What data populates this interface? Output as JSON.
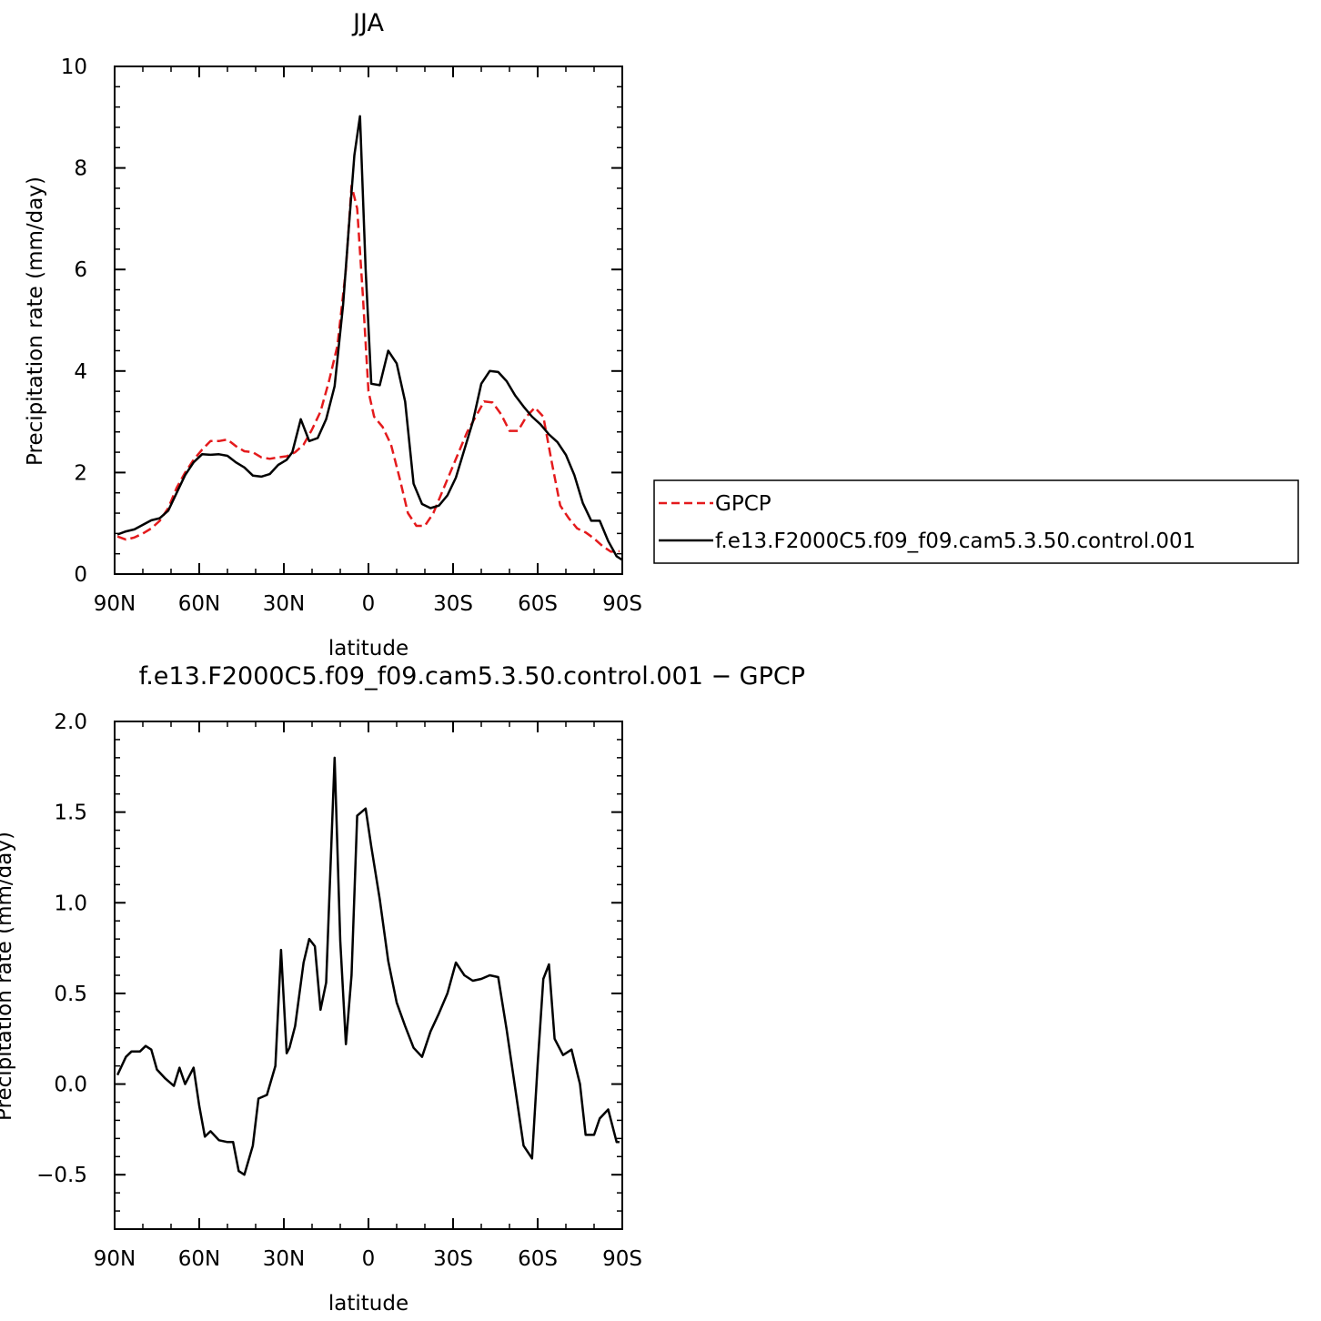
{
  "chart_data": [
    {
      "type": "line",
      "title": "JJA",
      "xlabel": "latitude",
      "ylabel": "Precipitation rate (mm/day)",
      "xlim": [
        -90,
        90
      ],
      "ylim": [
        0,
        10
      ],
      "x_ticks": [
        -90,
        -60,
        -30,
        0,
        30,
        60,
        90
      ],
      "x_tick_labels": [
        "90N",
        "60N",
        "30N",
        "0",
        "30S",
        "60S",
        "90S"
      ],
      "y_ticks": [
        0,
        2,
        4,
        6,
        8,
        10
      ],
      "y_tick_labels": [
        "0",
        "2",
        "4",
        "6",
        "8",
        "10"
      ],
      "grid": false,
      "legend_position": "right",
      "series": [
        {
          "name": "GPCP",
          "color": "#e41a1c",
          "dash": true,
          "x": [
            -89,
            -86,
            -83,
            -80,
            -77,
            -74,
            -71,
            -68,
            -65,
            -62,
            -59,
            -56,
            -53,
            -50,
            -47,
            -44,
            -41,
            -38,
            -35,
            -32,
            -29,
            -26,
            -23,
            -20,
            -17,
            -14,
            -11,
            -8,
            -6,
            -4,
            -2,
            0,
            2,
            5,
            8,
            11,
            14,
            17,
            20,
            23,
            26,
            29,
            32,
            35,
            38,
            41,
            44,
            47,
            50,
            53,
            56,
            59,
            62,
            65,
            68,
            71,
            74,
            77,
            80,
            83,
            86,
            89
          ],
          "y": [
            0.74,
            0.68,
            0.72,
            0.8,
            0.9,
            1.05,
            1.3,
            1.7,
            2.0,
            2.25,
            2.45,
            2.62,
            2.62,
            2.65,
            2.52,
            2.42,
            2.4,
            2.3,
            2.27,
            2.3,
            2.32,
            2.4,
            2.55,
            2.85,
            3.2,
            3.8,
            4.5,
            6.0,
            7.65,
            7.2,
            5.5,
            3.6,
            3.1,
            2.9,
            2.55,
            1.9,
            1.2,
            0.95,
            0.95,
            1.2,
            1.6,
            2.0,
            2.4,
            2.8,
            3.1,
            3.4,
            3.38,
            3.15,
            2.82,
            2.82,
            3.1,
            3.28,
            3.1,
            2.2,
            1.35,
            1.1,
            0.9,
            0.82,
            0.7,
            0.55,
            0.44,
            0.45
          ]
        },
        {
          "name": "f.e13.F2000C5.f09_f09.cam5.3.50.control.001",
          "color": "#000000",
          "dash": false,
          "x": [
            -89,
            -86,
            -83,
            -80,
            -77,
            -74,
            -71,
            -68,
            -65,
            -62,
            -59,
            -56,
            -53,
            -50,
            -47,
            -44,
            -41,
            -38,
            -35,
            -32,
            -29,
            -27,
            -24,
            -21,
            -18,
            -15,
            -12,
            -9,
            -7,
            -5,
            -3,
            -1,
            1,
            4,
            7,
            10,
            13,
            16,
            19,
            22,
            25,
            28,
            31,
            34,
            37,
            40,
            43,
            46,
            49,
            52,
            55,
            58,
            61,
            64,
            67,
            70,
            73,
            76,
            79,
            82,
            85,
            88,
            90
          ],
          "y": [
            0.78,
            0.84,
            0.88,
            0.97,
            1.06,
            1.1,
            1.25,
            1.6,
            1.95,
            2.2,
            2.36,
            2.35,
            2.36,
            2.33,
            2.2,
            2.1,
            1.94,
            1.92,
            1.97,
            2.15,
            2.25,
            2.4,
            3.05,
            2.62,
            2.68,
            3.05,
            3.7,
            5.3,
            6.8,
            8.25,
            9.02,
            6.0,
            3.75,
            3.72,
            4.4,
            4.15,
            3.4,
            1.78,
            1.38,
            1.3,
            1.35,
            1.55,
            1.9,
            2.45,
            3.0,
            3.75,
            4.0,
            3.98,
            3.8,
            3.52,
            3.3,
            3.1,
            2.95,
            2.75,
            2.6,
            2.35,
            1.95,
            1.4,
            1.05,
            1.05,
            0.65,
            0.35,
            0.28
          ]
        }
      ]
    },
    {
      "type": "line",
      "title": "f.e13.F2000C5.f09_f09.cam5.3.50.control.001 − GPCP",
      "xlabel": "latitude",
      "ylabel": "Precipitation rate (mm/day)",
      "xlim": [
        -90,
        90
      ],
      "ylim": [
        -0.8,
        2.0
      ],
      "x_ticks": [
        -90,
        -60,
        -30,
        0,
        30,
        60,
        90
      ],
      "x_tick_labels": [
        "90N",
        "60N",
        "30N",
        "0",
        "30S",
        "60S",
        "90S"
      ],
      "y_ticks": [
        -0.5,
        0.0,
        0.5,
        1.0,
        1.5,
        2.0
      ],
      "y_tick_labels": [
        "−0.5",
        "0.0",
        "0.5",
        "1.0",
        "1.5",
        "2.0"
      ],
      "grid": false,
      "series": [
        {
          "color": "#000000",
          "x": [
            -89,
            -86,
            -84,
            -81,
            -79,
            -77,
            -75,
            -72,
            -69,
            -67,
            -65,
            -62,
            -60,
            -58,
            -56,
            -53,
            -50,
            -48,
            -46,
            -44,
            -41,
            -39,
            -36,
            -33,
            -31,
            -29,
            -28,
            -26,
            -23,
            -21,
            -19,
            -17,
            -15,
            -12,
            -10,
            -8,
            -6,
            -4,
            -1,
            1,
            4,
            7,
            10,
            13,
            16,
            19,
            22,
            25,
            28,
            31,
            34,
            37,
            40,
            43,
            46,
            49,
            52,
            55,
            58,
            60,
            62,
            64,
            66,
            69,
            72,
            75,
            77,
            80,
            82,
            85,
            88,
            89
          ],
          "y": [
            0.05,
            0.15,
            0.18,
            0.18,
            0.21,
            0.19,
            0.08,
            0.03,
            -0.01,
            0.09,
            0.0,
            0.09,
            -0.12,
            -0.29,
            -0.26,
            -0.31,
            -0.32,
            -0.32,
            -0.48,
            -0.5,
            -0.34,
            -0.08,
            -0.06,
            0.1,
            0.74,
            0.17,
            0.2,
            0.32,
            0.67,
            0.8,
            0.76,
            0.41,
            0.56,
            1.8,
            0.79,
            0.22,
            0.6,
            1.48,
            1.52,
            1.31,
            1.02,
            0.68,
            0.45,
            0.32,
            0.2,
            0.15,
            0.29,
            0.39,
            0.5,
            0.67,
            0.6,
            0.57,
            0.58,
            0.6,
            0.59,
            0.3,
            -0.02,
            -0.34,
            -0.41,
            0.11,
            0.58,
            0.66,
            0.25,
            0.16,
            0.19,
            0.0,
            -0.28,
            -0.28,
            -0.19,
            -0.14,
            -0.32,
            -0.32
          ]
        }
      ]
    }
  ]
}
